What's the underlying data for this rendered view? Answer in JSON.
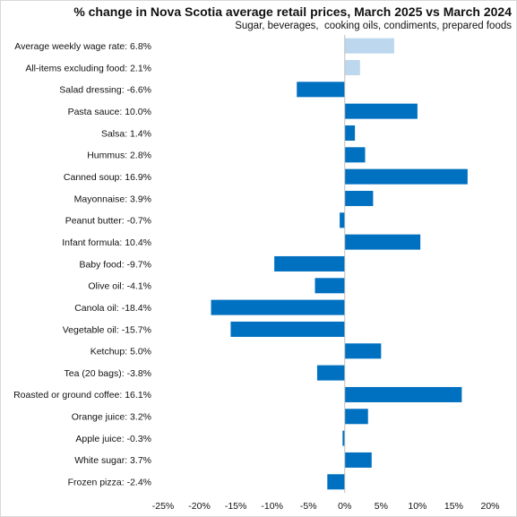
{
  "chart_data": {
    "type": "bar",
    "orientation": "horizontal",
    "title": "% change in Nova Scotia average retail prices, March 2025 vs March 2024",
    "subtitle": "Sugar, beverages,  cooking oils, condiments, prepared foods",
    "xlim": [
      -25,
      20
    ],
    "xticks": [
      "-25%",
      "-20%",
      "-15%",
      "-10%",
      "-5%",
      "0%",
      "5%",
      "10%",
      "15%",
      "20%"
    ],
    "xtick_values": [
      -25,
      -20,
      -15,
      -10,
      -5,
      0,
      5,
      10,
      15,
      20
    ],
    "grid": false,
    "legend": "none",
    "colors": {
      "highlight": "#bdd7ee",
      "default": "#0070c0"
    },
    "categories": [
      "Average weekly wage rate: 6.8%",
      "All-items excluding food: 2.1%",
      "Salad dressing: -6.6%",
      "Pasta sauce: 10.0%",
      "Salsa: 1.4%",
      "Hummus: 2.8%",
      "Canned soup: 16.9%",
      "Mayonnaise: 3.9%",
      "Peanut butter: -0.7%",
      "Infant formula: 10.4%",
      "Baby food: -9.7%",
      "Olive oil: -4.1%",
      "Canola oil: -18.4%",
      "Vegetable oil: -15.7%",
      "Ketchup: 5.0%",
      "Tea (20 bags): -3.8%",
      "Roasted or ground coffee: 16.1%",
      "Orange juice: 3.2%",
      "Apple juice: -0.3%",
      "White sugar: 3.7%",
      "Frozen pizza: -2.4%"
    ],
    "values": [
      6.8,
      2.1,
      -6.6,
      10.0,
      1.4,
      2.8,
      16.9,
      3.9,
      -0.7,
      10.4,
      -9.7,
      -4.1,
      -18.4,
      -15.7,
      5.0,
      -3.8,
      16.1,
      3.2,
      -0.3,
      3.7,
      -2.4
    ],
    "highlighted": [
      true,
      true,
      false,
      false,
      false,
      false,
      false,
      false,
      false,
      false,
      false,
      false,
      false,
      false,
      false,
      false,
      false,
      false,
      false,
      false,
      false
    ]
  }
}
